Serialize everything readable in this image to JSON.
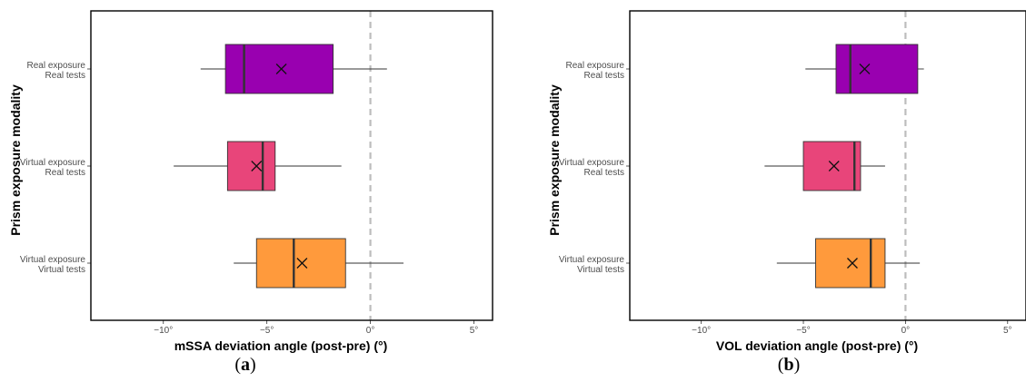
{
  "colors": {
    "real_real": "#9900B0",
    "virtual_real": "#E8457A",
    "virtual_virtual": "#FF9A3C",
    "reference_line": "#bdbdbd"
  },
  "chart_data": [
    {
      "type": "boxplot",
      "orientation": "horizontal",
      "panel_label": "a",
      "xlabel": "mSSA deviation angle (post-pre) (°)",
      "ylabel": "Prism exposure modality",
      "xlim": [
        -13.5,
        5.9
      ],
      "xticks": [
        -10,
        -5,
        0,
        5
      ],
      "xtick_labels": [
        "−10°",
        "−5°",
        "0°",
        "5°"
      ],
      "reference_line_x": 0,
      "categories": [
        {
          "line1": "Real exposure",
          "line2": "Real tests",
          "color_key": "real_real",
          "whisker_low": -8.2,
          "q1": -7.0,
          "median": -6.1,
          "q3": -1.8,
          "whisker_high": 0.8,
          "mean": -4.3
        },
        {
          "line1": "Virtual exposure",
          "line2": "Real tests",
          "color_key": "virtual_real",
          "whisker_low": -9.5,
          "q1": -6.9,
          "median": -5.2,
          "q3": -4.6,
          "whisker_high": -1.4,
          "mean": -5.5
        },
        {
          "line1": "Virtual exposure",
          "line2": "Virtual tests",
          "color_key": "virtual_virtual",
          "whisker_low": -6.6,
          "q1": -5.5,
          "median": -3.7,
          "q3": -1.2,
          "whisker_high": 1.6,
          "mean": -3.3
        }
      ]
    },
    {
      "type": "boxplot",
      "orientation": "horizontal",
      "panel_label": "b",
      "xlabel": "VOL deviation angle (post-pre) (°)",
      "ylabel": "Prism exposure modality",
      "xlim": [
        -13.5,
        5.9
      ],
      "xticks": [
        -10,
        -5,
        0,
        5
      ],
      "xtick_labels": [
        "−10°",
        "−5°",
        "0°",
        "5°"
      ],
      "reference_line_x": 0,
      "categories": [
        {
          "line1": "Real exposure",
          "line2": "Real tests",
          "color_key": "real_real",
          "whisker_low": -4.9,
          "q1": -3.4,
          "median": -2.7,
          "q3": 0.6,
          "whisker_high": 0.9,
          "mean": -2.0
        },
        {
          "line1": "Virtual exposure",
          "line2": "Real tests",
          "color_key": "virtual_real",
          "whisker_low": -6.9,
          "q1": -5.0,
          "median": -2.5,
          "q3": -2.2,
          "whisker_high": -1.0,
          "mean": -3.5
        },
        {
          "line1": "Virtual exposure",
          "line2": "Virtual tests",
          "color_key": "virtual_virtual",
          "whisker_low": -6.3,
          "q1": -4.4,
          "median": -1.7,
          "q3": -1.0,
          "whisker_high": 0.7,
          "mean": -2.6
        }
      ]
    }
  ]
}
